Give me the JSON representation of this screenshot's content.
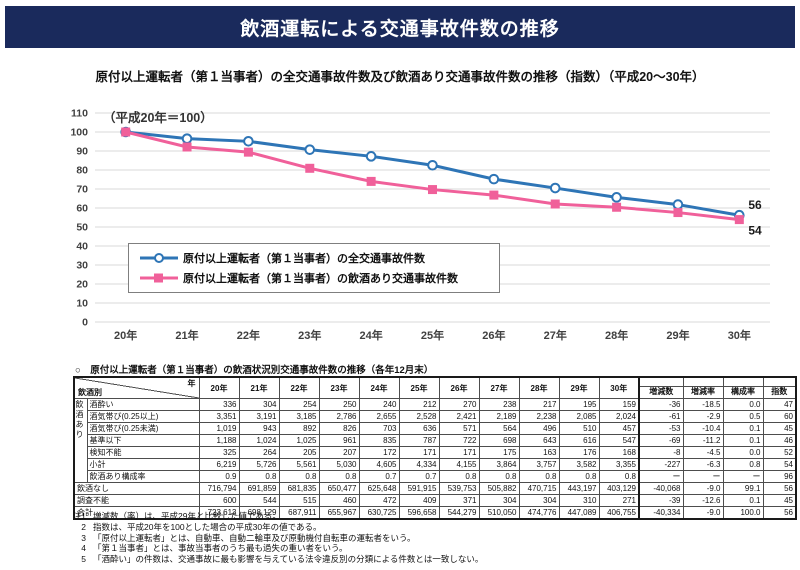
{
  "page": {
    "title": "飲酒運転による交通事故件数の推移",
    "subtitle": "原付以上運転者（第１当事者）の全交通事故件数及び飲酒あり交通事故件数の推移（指数）（平成20～30年）"
  },
  "colors": {
    "banner_bg": "#1a2a5c",
    "banner_text": "#ffffff",
    "grid": "#d9d9d9",
    "axis_text": "#404040",
    "series_all": "#2e75b6",
    "series_drink": "#f0609a"
  },
  "chart_data": {
    "type": "line",
    "annotation": "（平成20年＝100）",
    "x_labels": [
      "20年",
      "21年",
      "22年",
      "23年",
      "24年",
      "25年",
      "26年",
      "27年",
      "28年",
      "29年",
      "30年"
    ],
    "ylim": [
      0,
      110
    ],
    "ytick_step": 10,
    "grid": true,
    "legend_position": "inside-center-left",
    "series": [
      {
        "name": "原付以上運転者（第１当事者）の全交通事故件数",
        "color": "#2e75b6",
        "marker": "circle-open",
        "values": [
          100,
          96.5,
          95.1,
          90.7,
          87.2,
          82.5,
          75.2,
          70.5,
          65.6,
          61.8,
          56.2
        ],
        "end_label": "56",
        "end_label_dy": -6
      },
      {
        "name": "原付以上運転者（第１当事者）の飲酒あり交通事故件数",
        "color": "#f0609a",
        "marker": "square",
        "values": [
          100,
          92.1,
          89.4,
          80.9,
          74.0,
          69.7,
          66.8,
          62.1,
          60.4,
          57.6,
          53.9
        ],
        "end_label": "54",
        "end_label_dy": 15
      }
    ]
  },
  "table": {
    "title": "○　原付以上運転者（第１当事者）の飲酒状況別交通事故件数の推移（各年12月末）",
    "corner": {
      "top": "年",
      "bottom": "飲酒別"
    },
    "year_headers": [
      "20年",
      "21年",
      "22年",
      "23年",
      "24年",
      "25年",
      "26年",
      "27年",
      "28年",
      "29年",
      "30年"
    ],
    "stat_headers": [
      "増減数",
      "増減率",
      "構成率",
      "指数"
    ],
    "group_label": "飲酒あり",
    "rows": [
      {
        "label": "酒酔い",
        "group": true,
        "values": [
          "336",
          "304",
          "254",
          "250",
          "240",
          "212",
          "270",
          "238",
          "217",
          "195",
          "159",
          "-36",
          "-18.5",
          "0.0",
          "47"
        ]
      },
      {
        "label": "酒気帯び(0.25以上)",
        "group": true,
        "values": [
          "3,351",
          "3,191",
          "3,185",
          "2,786",
          "2,655",
          "2,528",
          "2,421",
          "2,189",
          "2,238",
          "2,085",
          "2,024",
          "-61",
          "-2.9",
          "0.5",
          "60"
        ]
      },
      {
        "label": "酒気帯び(0.25未満)",
        "group": true,
        "values": [
          "1,019",
          "943",
          "892",
          "826",
          "703",
          "636",
          "571",
          "564",
          "496",
          "510",
          "457",
          "-53",
          "-10.4",
          "0.1",
          "45"
        ]
      },
      {
        "label": "基準以下",
        "group": true,
        "values": [
          "1,188",
          "1,024",
          "1,025",
          "961",
          "835",
          "787",
          "722",
          "698",
          "643",
          "616",
          "547",
          "-69",
          "-11.2",
          "0.1",
          "46"
        ]
      },
      {
        "label": "検知不能",
        "group": true,
        "values": [
          "325",
          "264",
          "205",
          "207",
          "172",
          "171",
          "171",
          "175",
          "163",
          "176",
          "168",
          "-8",
          "-4.5",
          "0.0",
          "52"
        ]
      },
      {
        "label": "小計",
        "group": true,
        "values": [
          "6,219",
          "5,726",
          "5,561",
          "5,030",
          "4,605",
          "4,334",
          "4,155",
          "3,864",
          "3,757",
          "3,582",
          "3,355",
          "-227",
          "-6.3",
          "0.8",
          "54"
        ]
      },
      {
        "label": "飲酒あり構成率",
        "group": true,
        "values": [
          "0.9",
          "0.8",
          "0.8",
          "0.8",
          "0.7",
          "0.7",
          "0.8",
          "0.8",
          "0.8",
          "0.8",
          "0.8",
          "ー",
          "ー",
          "ー",
          "96"
        ]
      },
      {
        "label": "飲酒なし",
        "group": false,
        "values": [
          "716,794",
          "691,859",
          "681,835",
          "650,477",
          "625,648",
          "591,915",
          "539,753",
          "505,882",
          "470,715",
          "443,197",
          "403,129",
          "-40,068",
          "-9.0",
          "99.1",
          "56"
        ]
      },
      {
        "label": "調査不能",
        "group": false,
        "values": [
          "600",
          "544",
          "515",
          "460",
          "472",
          "409",
          "371",
          "304",
          "304",
          "310",
          "271",
          "-39",
          "-12.6",
          "0.1",
          "45"
        ]
      },
      {
        "label": "合計",
        "group": false,
        "values": [
          "723,613",
          "698,129",
          "687,911",
          "655,967",
          "630,725",
          "596,658",
          "544,279",
          "510,050",
          "474,776",
          "447,089",
          "406,755",
          "-40,334",
          "-9.0",
          "100.0",
          "56"
        ]
      }
    ]
  },
  "notes": [
    {
      "prefix": "注1",
      "text": "増減数（率）は、平成29年と比較した値である。"
    },
    {
      "prefix": "2",
      "text": "指数は、平成20年を100とした場合の平成30年の値である。"
    },
    {
      "prefix": "3",
      "text": "「原付以上運転者」とは、自動車、自動二輪車及び原動機付自転車の運転者をいう。"
    },
    {
      "prefix": "4",
      "text": "「第１当事者」とは、事故当事者のうち最も過失の重い者をいう。"
    },
    {
      "prefix": "5",
      "text": "「酒酔い」の件数は、交通事故に最も影響を与えている法令違反別の分類による件数とは一致しない。"
    }
  ]
}
